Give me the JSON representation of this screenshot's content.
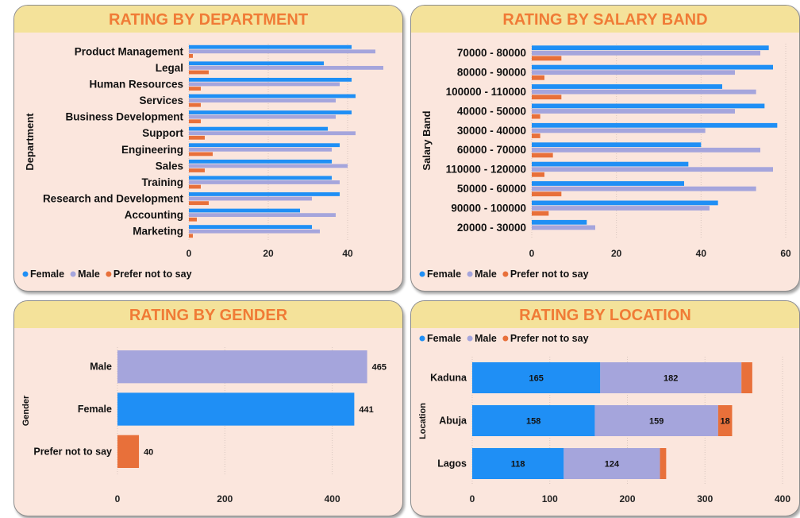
{
  "colors": {
    "female": "#1f8ff5",
    "male": "#a5a5dc",
    "prefer": "#e8703a",
    "title": "#f07b36",
    "titleBg": "#f4e29a",
    "panelBg": "#fbe6dd"
  },
  "chart_data": [
    {
      "id": "dept",
      "type": "bar",
      "orientation": "horizontal",
      "title": "RATING BY DEPARTMENT",
      "ylabel": "Department",
      "xlabel": "",
      "categories": [
        "Product Management",
        "Legal",
        "Human Resources",
        "Services",
        "Business Development",
        "Support",
        "Engineering",
        "Sales",
        "Training",
        "Research and Development",
        "Accounting",
        "Marketing"
      ],
      "series": [
        {
          "name": "Female",
          "values": [
            41,
            34,
            41,
            42,
            41,
            35,
            38,
            36,
            36,
            38,
            28,
            31
          ]
        },
        {
          "name": "Male",
          "values": [
            47,
            49,
            38,
            37,
            37,
            42,
            36,
            40,
            38,
            31,
            37,
            33
          ]
        },
        {
          "name": "Prefer not to say",
          "values": [
            1,
            5,
            3,
            3,
            3,
            4,
            6,
            4,
            3,
            5,
            2,
            1
          ]
        }
      ],
      "xlim": [
        0,
        50
      ],
      "xticks": [
        0,
        20,
        40
      ],
      "legend": "bottom-left",
      "grid": true
    },
    {
      "id": "salary",
      "type": "bar",
      "orientation": "horizontal",
      "title": "RATING BY SALARY BAND",
      "ylabel": "Salary Band",
      "xlabel": "",
      "categories": [
        "70000 - 80000",
        "80000 - 90000",
        "100000 - 110000",
        "40000 - 50000",
        "30000 - 40000",
        "60000 - 70000",
        "110000 - 120000",
        "50000 - 60000",
        "90000 - 100000",
        "20000 - 30000"
      ],
      "series": [
        {
          "name": "Female",
          "values": [
            56,
            57,
            45,
            55,
            58,
            40,
            37,
            36,
            44,
            13
          ]
        },
        {
          "name": "Male",
          "values": [
            54,
            48,
            53,
            48,
            41,
            54,
            57,
            53,
            42,
            15
          ]
        },
        {
          "name": "Prefer not to say",
          "values": [
            7,
            3,
            7,
            2,
            2,
            5,
            3,
            7,
            4,
            0
          ]
        }
      ],
      "xlim": [
        0,
        60
      ],
      "xticks": [
        0,
        20,
        40,
        60
      ],
      "legend": "bottom-left",
      "grid": true
    },
    {
      "id": "gender",
      "type": "bar",
      "orientation": "horizontal",
      "title": "RATING BY GENDER",
      "ylabel": "Gender",
      "xlabel": "",
      "categories": [
        "Male",
        "Female",
        "Prefer not to say"
      ],
      "values": [
        465,
        441,
        40
      ],
      "labels": [
        "465",
        "441",
        "40"
      ],
      "xlim": [
        0,
        470
      ],
      "xticks": [
        0,
        200,
        400
      ],
      "grid": true
    },
    {
      "id": "location",
      "type": "bar",
      "orientation": "horizontal",
      "stacked": true,
      "title": "RATING BY LOCATION",
      "ylabel": "Location",
      "xlabel": "",
      "categories": [
        "Kaduna",
        "Abuja",
        "Lagos"
      ],
      "series": [
        {
          "name": "Female",
          "values": [
            165,
            158,
            118
          ]
        },
        {
          "name": "Male",
          "values": [
            182,
            159,
            124
          ]
        },
        {
          "name": "Prefer not to say",
          "values": [
            14,
            18,
            8
          ]
        }
      ],
      "segment_labels": [
        [
          "165",
          "182",
          ""
        ],
        [
          "158",
          "159",
          "18"
        ],
        [
          "118",
          "124",
          ""
        ]
      ],
      "xlim": [
        0,
        400
      ],
      "xticks": [
        0,
        100,
        200,
        300,
        400
      ],
      "legend": "top-left",
      "grid": true
    }
  ]
}
